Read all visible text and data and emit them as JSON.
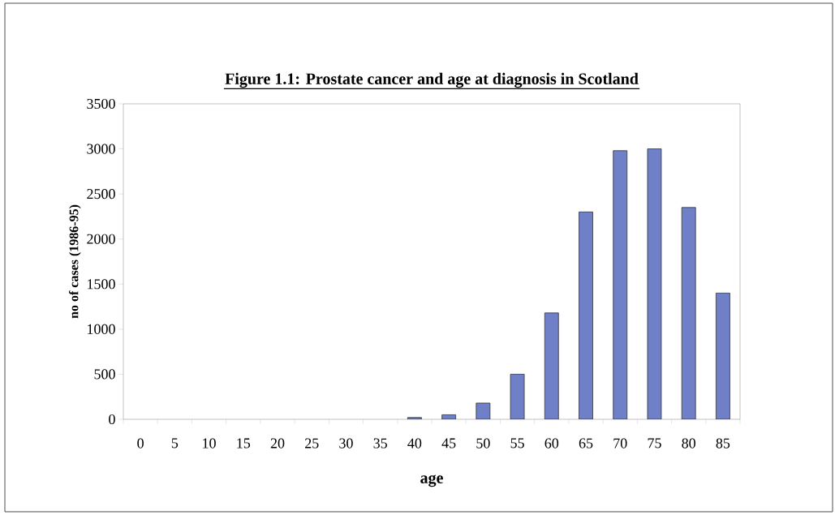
{
  "chart_data": {
    "type": "bar",
    "title": "Figure 1.1:    Prostate cancer and age at diagnosis in Scotland",
    "xlabel": "age",
    "ylabel": "no of cases (1986-95)",
    "categories": [
      "0",
      "5",
      "10",
      "15",
      "20",
      "25",
      "30",
      "35",
      "40",
      "45",
      "50",
      "55",
      "60",
      "65",
      "70",
      "75",
      "80",
      "85"
    ],
    "values": [
      null,
      null,
      null,
      null,
      null,
      null,
      null,
      null,
      20,
      50,
      180,
      500,
      1180,
      2300,
      2980,
      3000,
      2350,
      1400
    ],
    "color": "#6f7fc8",
    "ylim": [
      0,
      3500
    ],
    "yticks": [
      0,
      500,
      1000,
      1500,
      2000,
      2500,
      3000,
      3500
    ],
    "grid": false
  }
}
